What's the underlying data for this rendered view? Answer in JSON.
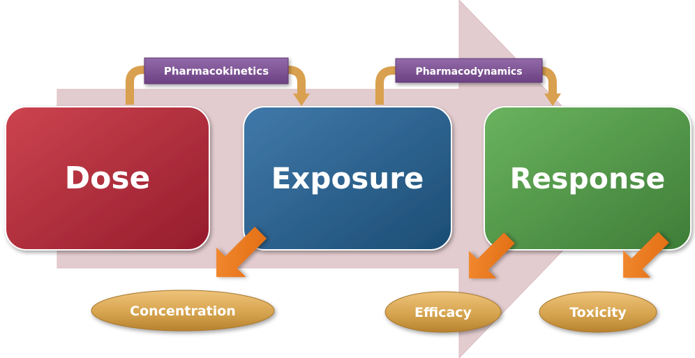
{
  "boxes": {
    "dose": {
      "label": "Dose",
      "color": "#b8323d"
    },
    "exposure": {
      "label": "Exposure",
      "color": "#2f6591"
    },
    "response": {
      "label": "Response",
      "color": "#54a04d"
    }
  },
  "processes": {
    "pharmacokinetics": {
      "label": "Pharmacokinetics"
    },
    "pharmacodynamics": {
      "label": "Pharmacodynamics"
    }
  },
  "outcomes": {
    "concentration": {
      "label": "Concentration"
    },
    "efficacy": {
      "label": "Efficacy"
    },
    "toxicity": {
      "label": "Toxicity"
    }
  },
  "colors": {
    "background_arrow": "#e3cccf",
    "process_tag": "#7d4f93",
    "connector": "#d9a04f",
    "pointer_arrow": "#ee7a1d",
    "outcome_oval": "#d6a450"
  }
}
